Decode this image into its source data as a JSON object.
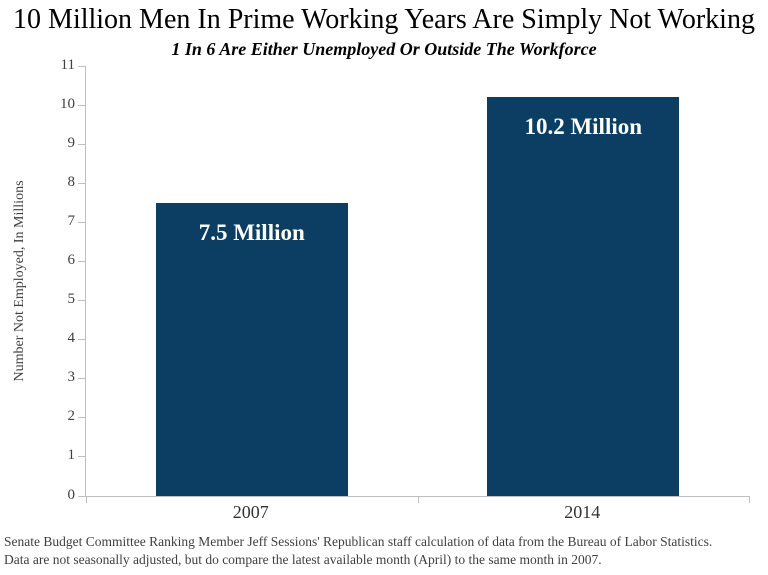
{
  "header": {
    "title": "10 Million Men In Prime Working Years Are Simply Not Working",
    "subtitle": "1 In 6 Are Either Unemployed Or Outside The Workforce"
  },
  "chart_data": {
    "type": "bar",
    "title": "10 Million Men In Prime Working Years Are Simply Not Working",
    "subtitle": "1 In 6 Are Either Unemployed Or Outside The Workforce",
    "categories": [
      "2007",
      "2014"
    ],
    "values": [
      7.5,
      10.2
    ],
    "data_labels": [
      "7.5 Million",
      "10.2 Million"
    ],
    "xlabel": "",
    "ylabel": "Number Not Employed, In Millions",
    "ylim": [
      0,
      11
    ],
    "yticks": [
      0,
      1,
      2,
      3,
      4,
      5,
      6,
      7,
      8,
      9,
      10,
      11
    ],
    "grid": false,
    "legend": false,
    "bar_color": "#0b3e62",
    "data_label_color": "#fffff8",
    "axis_color": "#bfbfbf"
  },
  "footer": {
    "lines": [
      "Senate Budget Committee Ranking Member Jeff Sessions' Republican staff calculation of data from the Bureau of Labor Statistics.",
      "Data are not seasonally adjusted, but do compare the latest available month (April) to the same month in 2007."
    ]
  }
}
